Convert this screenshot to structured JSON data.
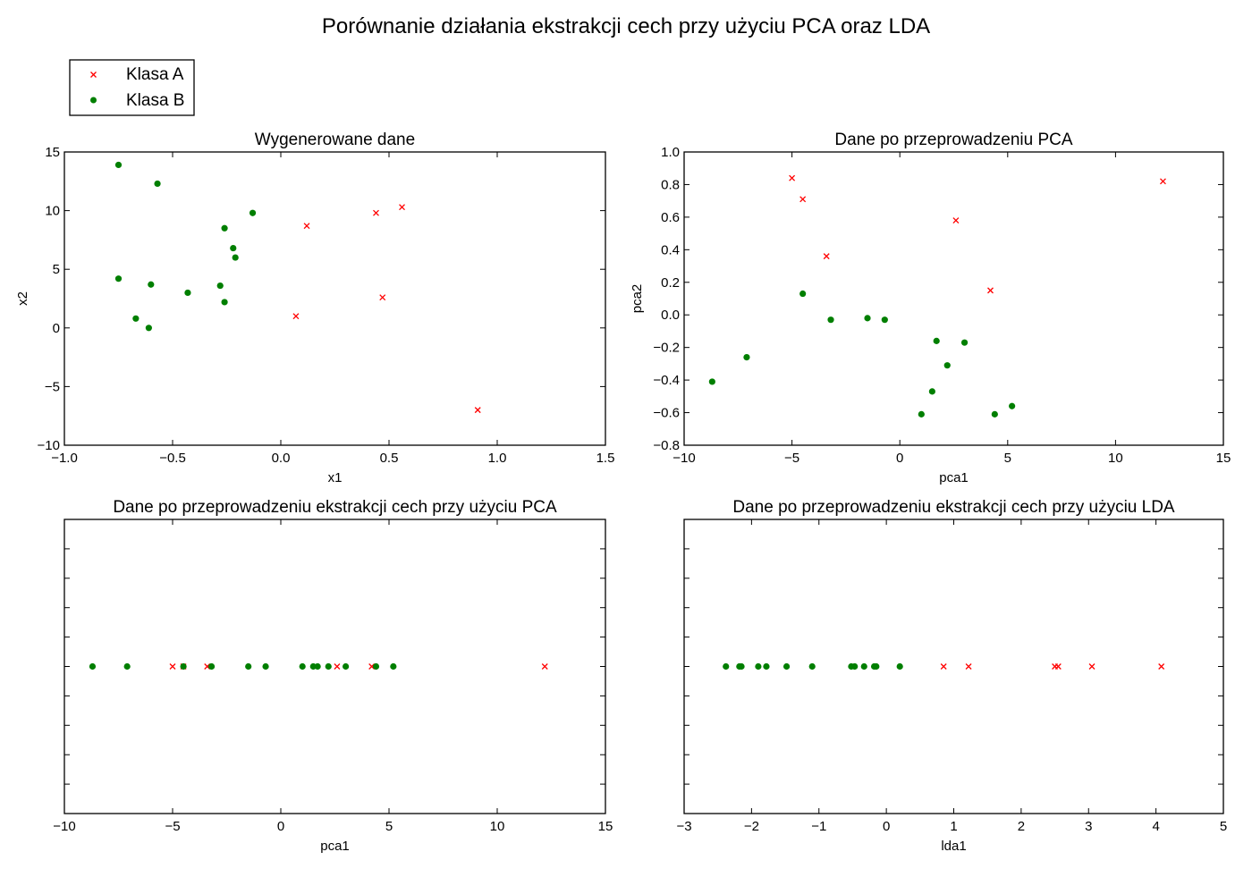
{
  "figure_title": "Porównanie działania ekstrakcji cech przy użyciu PCA oraz LDA",
  "legend": {
    "placement": "top-left",
    "entries": [
      {
        "label": "Klasa A",
        "marker": "x",
        "color": "#ff0000"
      },
      {
        "label": "Klasa B",
        "marker": "o",
        "color": "#007f00"
      }
    ]
  },
  "chart_data": [
    {
      "type": "scatter",
      "title": "Wygenerowane dane",
      "xlabel": "x1",
      "ylabel": "x2",
      "xlim": [
        -1.0,
        1.5
      ],
      "ylim": [
        -10,
        15
      ],
      "xticks": [
        -1.0,
        -0.5,
        0.0,
        0.5,
        1.0,
        1.5
      ],
      "xtick_labels": [
        "−1.0",
        "−0.5",
        "0.0",
        "0.5",
        "1.0",
        "1.5"
      ],
      "yticks": [
        -10,
        -5,
        0,
        5,
        10,
        15
      ],
      "ytick_labels": [
        "−10",
        "−5",
        "0",
        "5",
        "10",
        "15"
      ],
      "grid": false,
      "series": [
        {
          "name": "Klasa A",
          "marker": "x",
          "color": "#ff0000",
          "x": [
            0.12,
            0.44,
            0.56,
            0.07,
            0.47,
            0.91
          ],
          "y": [
            8.7,
            9.8,
            10.3,
            1.0,
            2.6,
            -7.0
          ]
        },
        {
          "name": "Klasa B",
          "marker": "o",
          "color": "#007f00",
          "x": [
            -0.75,
            -0.57,
            -0.13,
            -0.26,
            -0.22,
            -0.21,
            -0.75,
            -0.6,
            -0.43,
            -0.28,
            -0.26,
            -0.67,
            -0.61
          ],
          "y": [
            13.9,
            12.3,
            9.8,
            8.5,
            6.8,
            6.0,
            4.2,
            3.7,
            3.0,
            3.6,
            2.2,
            0.8,
            0.0
          ]
        }
      ]
    },
    {
      "type": "scatter",
      "title": "Dane po przeprowadzeniu PCA",
      "xlabel": "pca1",
      "ylabel": "pca2",
      "xlim": [
        -10,
        15
      ],
      "ylim": [
        -0.8,
        1.0
      ],
      "xticks": [
        -10,
        -5,
        0,
        5,
        10,
        15
      ],
      "xtick_labels": [
        "−10",
        "−5",
        "0",
        "5",
        "10",
        "15"
      ],
      "yticks": [
        -0.8,
        -0.6,
        -0.4,
        -0.2,
        0.0,
        0.2,
        0.4,
        0.6,
        0.8,
        1.0
      ],
      "ytick_labels": [
        "−0.8",
        "−0.6",
        "−0.4",
        "−0.2",
        "0.0",
        "0.2",
        "0.4",
        "0.6",
        "0.8",
        "1.0"
      ],
      "grid": false,
      "series": [
        {
          "name": "Klasa A",
          "marker": "x",
          "color": "#ff0000",
          "x": [
            -5.0,
            -4.5,
            -3.4,
            2.6,
            4.2,
            12.2
          ],
          "y": [
            0.84,
            0.71,
            0.36,
            0.58,
            0.15,
            0.82
          ]
        },
        {
          "name": "Klasa B",
          "marker": "o",
          "color": "#007f00",
          "x": [
            -8.7,
            -7.1,
            -4.5,
            -3.2,
            -1.5,
            -0.7,
            1.7,
            3.0,
            2.2,
            1.5,
            1.0,
            4.4,
            5.2
          ],
          "y": [
            -0.41,
            -0.26,
            0.13,
            -0.03,
            -0.02,
            -0.03,
            -0.16,
            -0.17,
            -0.31,
            -0.47,
            -0.61,
            -0.61,
            -0.56
          ]
        }
      ]
    },
    {
      "type": "scatter",
      "title": "Dane po przeprowadzeniu ekstrakcji cech przy użyciu PCA",
      "xlabel": "pca1",
      "ylabel": "",
      "xlim": [
        -10,
        15
      ],
      "ylim": [
        -1,
        1
      ],
      "xticks": [
        -10,
        -5,
        0,
        5,
        10,
        15
      ],
      "xtick_labels": [
        "−10",
        "−5",
        "0",
        "5",
        "10",
        "15"
      ],
      "yticks": [
        -0.8,
        -0.6,
        -0.4,
        -0.2,
        0.0,
        0.2,
        0.4,
        0.6,
        0.8
      ],
      "ytick_labels": [],
      "grid": false,
      "series": [
        {
          "name": "Klasa A",
          "marker": "x",
          "color": "#ff0000",
          "x": [
            -5.0,
            -4.5,
            -3.4,
            2.6,
            4.2,
            12.2
          ],
          "y": [
            0,
            0,
            0,
            0,
            0,
            0
          ]
        },
        {
          "name": "Klasa B",
          "marker": "o",
          "color": "#007f00",
          "x": [
            -8.7,
            -7.1,
            -4.5,
            -3.2,
            -1.5,
            -0.7,
            1.0,
            1.5,
            1.7,
            2.2,
            3.0,
            4.4,
            5.2
          ],
          "y": [
            0,
            0,
            0,
            0,
            0,
            0,
            0,
            0,
            0,
            0,
            0,
            0,
            0
          ]
        }
      ]
    },
    {
      "type": "scatter",
      "title": "Dane po przeprowadzeniu ekstrakcji cech przy użyciu LDA",
      "xlabel": "lda1",
      "ylabel": "",
      "xlim": [
        -3,
        5
      ],
      "ylim": [
        -1,
        1
      ],
      "xticks": [
        -3,
        -2,
        -1,
        0,
        1,
        2,
        3,
        4,
        5
      ],
      "xtick_labels": [
        "−3",
        "−2",
        "−1",
        "0",
        "1",
        "2",
        "3",
        "4",
        "5"
      ],
      "yticks": [
        -0.8,
        -0.6,
        -0.4,
        -0.2,
        0.0,
        0.2,
        0.4,
        0.6,
        0.8
      ],
      "ytick_labels": [],
      "grid": false,
      "series": [
        {
          "name": "Klasa A",
          "marker": "x",
          "color": "#ff0000",
          "x": [
            0.85,
            1.22,
            2.5,
            2.55,
            3.05,
            4.08
          ],
          "y": [
            0,
            0,
            0,
            0,
            0,
            0
          ]
        },
        {
          "name": "Klasa B",
          "marker": "o",
          "color": "#007f00",
          "x": [
            -2.38,
            -2.18,
            -2.15,
            -1.9,
            -1.78,
            -1.48,
            -1.1,
            -0.52,
            -0.47,
            -0.33,
            -0.18,
            -0.15,
            0.2
          ],
          "y": [
            0,
            0,
            0,
            0,
            0,
            0,
            0,
            0,
            0,
            0,
            0,
            0,
            0
          ]
        }
      ]
    }
  ]
}
